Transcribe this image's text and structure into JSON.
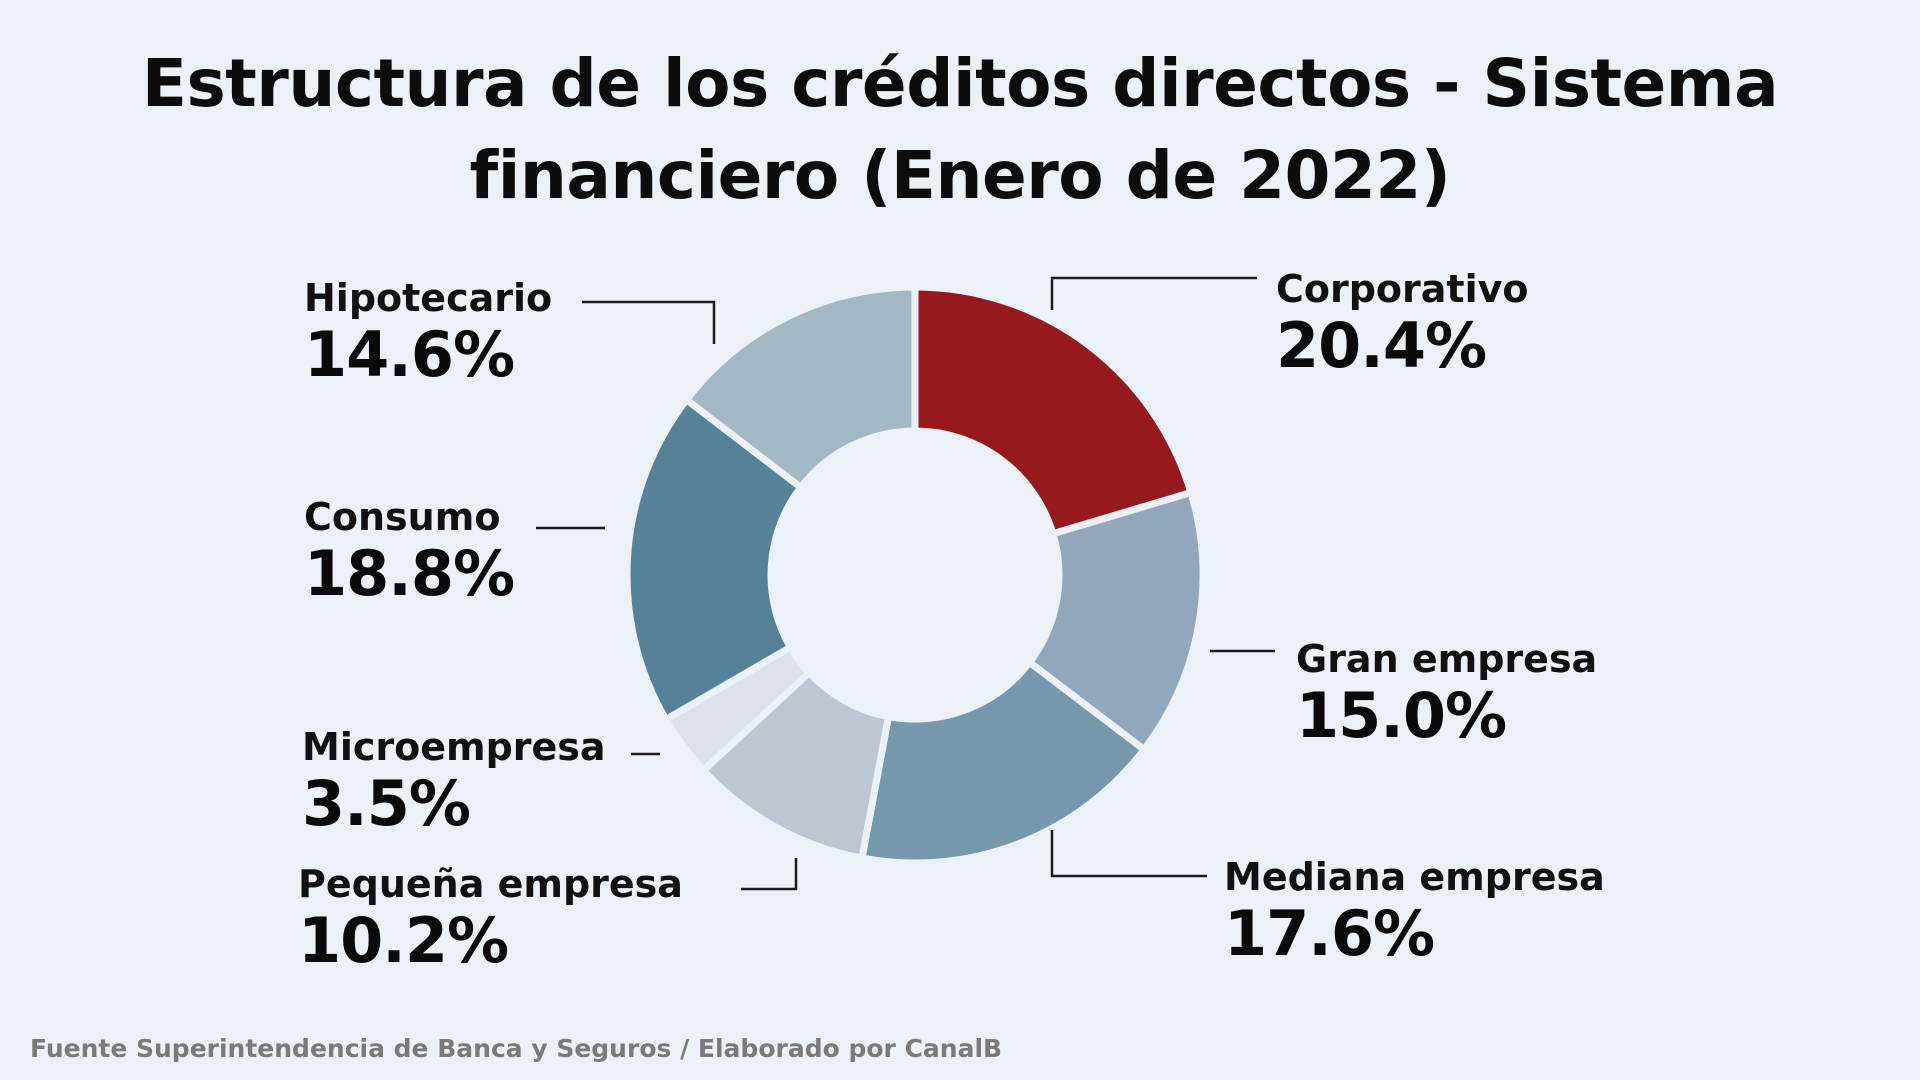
{
  "chart_data": {
    "type": "pie",
    "title_lines": [
      "Estructura de los créditos directos - Sistema",
      "financiero (Enero de 2022)"
    ],
    "slices": [
      {
        "label": "Corporativo",
        "value": 20.4,
        "display": "20.4%",
        "color": "#96191d"
      },
      {
        "label": "Gran empresa",
        "value": 15.0,
        "display": "15.0%",
        "color": "#91a8bc"
      },
      {
        "label": "Mediana empresa",
        "value": 17.6,
        "display": "17.6%",
        "color": "#7698ac"
      },
      {
        "label": "Pequeña empresa",
        "value": 10.2,
        "display": "10.2%",
        "color": "#bcc7d2"
      },
      {
        "label": "Microempresa",
        "value": 3.5,
        "display": "3.5%",
        "color": "#dde2e9"
      },
      {
        "label": "Consumo",
        "value": 18.8,
        "display": "18.8%",
        "color": "#568299"
      },
      {
        "label": "Hipotecario",
        "value": 14.6,
        "display": "14.6%",
        "color": "#a3b8c5"
      }
    ],
    "donut": true,
    "start_angle": "12 o'clock",
    "direction": "clockwise"
  },
  "footer": {
    "source": "Fuente Superintendencia de Banca y Seguros / Elaborado por CanalB"
  },
  "colors": {
    "background": "#ecf1f7",
    "slice_separator": "#ecf1f7"
  }
}
